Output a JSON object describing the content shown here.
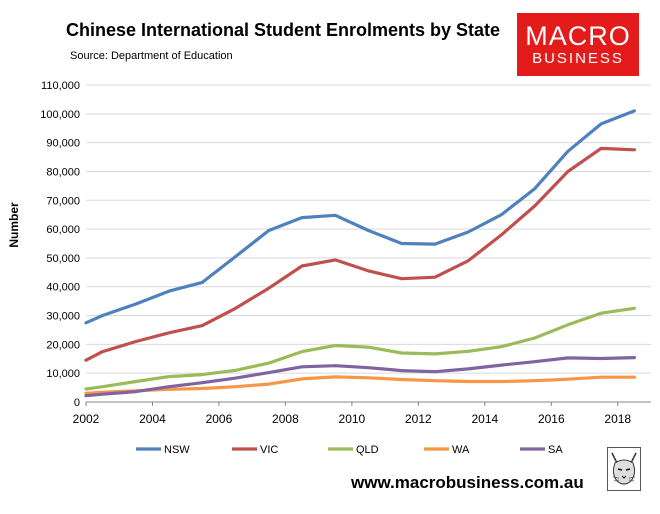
{
  "header": {
    "title": "Chinese International Student Enrolments by State",
    "subtitle": "Source: Department of Education",
    "brand_line1": "MACRO",
    "brand_line2": "BUSINESS",
    "brand_color": "#e41b1b"
  },
  "footer": {
    "url": "www.macrobusiness.com.au",
    "mascot_icon": "lynx-sketch-icon"
  },
  "chart_data": {
    "type": "line",
    "title": "Chinese International Student Enrolments by State",
    "xlabel": "",
    "ylabel": "Number",
    "xlim": [
      2002,
      2019
    ],
    "ylim": [
      0,
      110000
    ],
    "x_ticks": [
      2002,
      2004,
      2006,
      2008,
      2010,
      2012,
      2014,
      2016,
      2018
    ],
    "y_ticks": [
      0,
      10000,
      20000,
      30000,
      40000,
      50000,
      60000,
      70000,
      80000,
      90000,
      100000,
      110000
    ],
    "y_tick_labels": [
      "0",
      "10,000",
      "20,000",
      "30,000",
      "40,000",
      "50,000",
      "60,000",
      "70,000",
      "80,000",
      "90,000",
      "100,000",
      "110,000"
    ],
    "grid": "horizontal",
    "legend_position": "bottom",
    "x": [
      2002,
      2002.5,
      2003.5,
      2004.5,
      2005.5,
      2006.5,
      2007.5,
      2008.5,
      2009.5,
      2010.5,
      2011.5,
      2012.5,
      2013.5,
      2014.5,
      2015.5,
      2016.5,
      2017.5,
      2018.5
    ],
    "series": [
      {
        "name": "NSW",
        "color": "#4f81bd",
        "values": [
          27500,
          30000,
          34000,
          38500,
          41500,
          50500,
          59500,
          64000,
          64800,
          59500,
          55000,
          54800,
          59000,
          65000,
          74000,
          87000,
          96500,
          101000
        ]
      },
      {
        "name": "VIC",
        "color": "#c0504d",
        "values": [
          14500,
          17500,
          21000,
          24000,
          26500,
          32500,
          39500,
          47200,
          49300,
          45500,
          42800,
          43300,
          49000,
          58000,
          68000,
          80000,
          88000,
          87500
        ]
      },
      {
        "name": "QLD",
        "color": "#9bbb59",
        "values": [
          4500,
          5300,
          7100,
          8800,
          9500,
          11000,
          13500,
          17500,
          19600,
          19000,
          17000,
          16700,
          17600,
          19200,
          22200,
          26800,
          30800,
          32500
        ]
      },
      {
        "name": "WA",
        "color": "#f79646",
        "values": [
          3000,
          3400,
          3900,
          4400,
          4700,
          5300,
          6200,
          8000,
          8700,
          8400,
          7800,
          7400,
          7100,
          7100,
          7400,
          7900,
          8600,
          8600
        ]
      },
      {
        "name": "SA",
        "color": "#8064a2",
        "values": [
          2200,
          2700,
          3600,
          5300,
          6700,
          8300,
          10200,
          12200,
          12600,
          11900,
          10900,
          10500,
          11500,
          12800,
          14000,
          15300,
          15100,
          15400
        ]
      }
    ]
  }
}
